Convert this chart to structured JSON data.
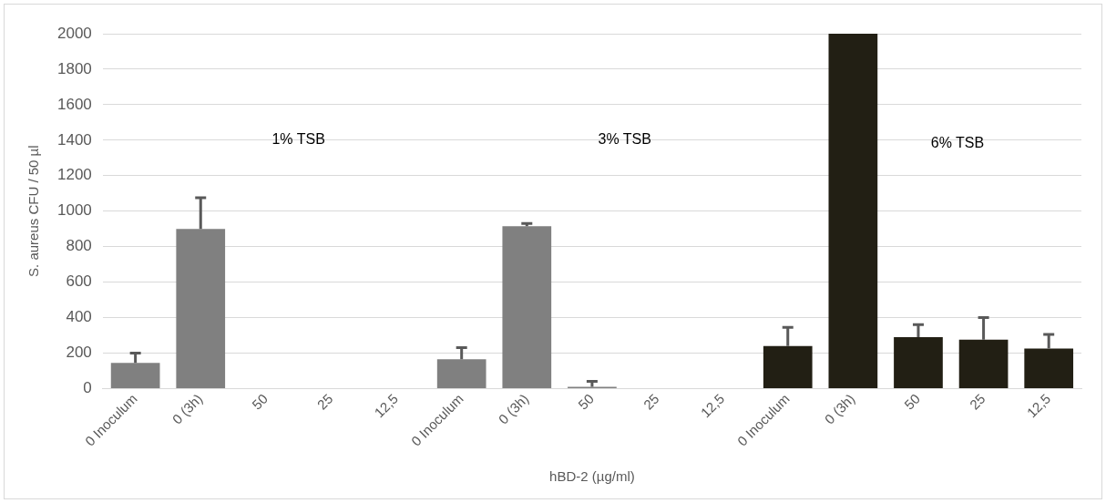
{
  "chart_data": {
    "type": "bar",
    "xlabel": "hBD-2 (µg/ml)",
    "ylabel": "S. aureus CFU / 50 µl",
    "categories": [
      "0 Inoculum",
      "0 (3h)",
      "50",
      "25",
      "12,5",
      "0 Inoculum",
      "0 (3h)",
      "50",
      "25",
      "12,5",
      "0 Inoculum",
      "0 (3h)",
      "50",
      "25",
      "12,5"
    ],
    "values": [
      145,
      900,
      0,
      0,
      0,
      165,
      915,
      10,
      0,
      0,
      240,
      2000,
      290,
      275,
      225
    ],
    "colors": [
      "#808080",
      "#808080",
      "#808080",
      "#808080",
      "#808080",
      "#808080",
      "#808080",
      "#808080",
      "#808080",
      "#808080",
      "#221f14",
      "#221f14",
      "#221f14",
      "#221f14",
      "#221f14"
    ],
    "errors": [
      [
        145,
        200
      ],
      [
        900,
        1075
      ],
      null,
      null,
      null,
      [
        165,
        230
      ],
      [
        915,
        930
      ],
      [
        10,
        40
      ],
      null,
      null,
      [
        240,
        345
      ],
      null,
      [
        290,
        360
      ],
      [
        275,
        400
      ],
      [
        225,
        305
      ]
    ],
    "ylim": [
      0,
      2000
    ],
    "yticks": [
      0,
      200,
      400,
      600,
      800,
      1000,
      1200,
      1400,
      1600,
      1800,
      2000
    ],
    "grid": "y",
    "legend": false,
    "annotations": [
      "1% TSB",
      "3% TSB",
      "6% TSB"
    ]
  }
}
